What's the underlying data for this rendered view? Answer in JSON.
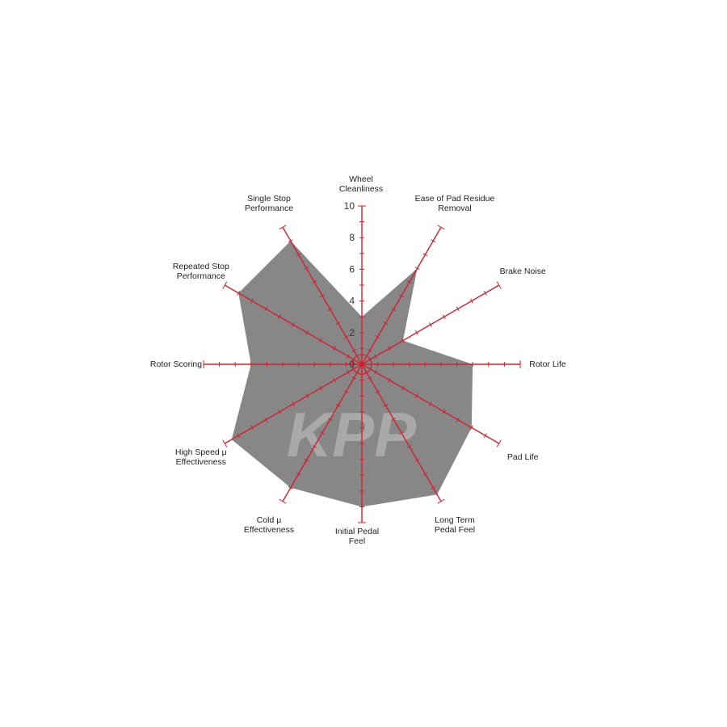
{
  "chart_data": {
    "type": "radar",
    "axes": [
      "Wheel\nCleanliness",
      "Ease of Pad Residue\nRemoval",
      "Brake Noise",
      "Rotor Life",
      "Pad Life",
      "Long Term\nPedal Feel",
      "Initial Pedal\nFeel",
      "Cold μ\nEffectiveness",
      "High Speed μ\nEffectiveness",
      "Rotor Scoring",
      "Repeated Stop\nPerformance",
      "Single Stop\nPerformance"
    ],
    "values": [
      3,
      7,
      3,
      7,
      8,
      9.5,
      9,
      9,
      9.5,
      7,
      9,
      9
    ],
    "range": [
      0,
      10
    ],
    "tick_labels": [
      "0",
      "2",
      "4",
      "6",
      "8",
      "10"
    ],
    "tick_step": 1,
    "watermark": "KPP",
    "colors": {
      "fill": "#878787",
      "axis": "#d0212e",
      "watermark": "#a9a9a9"
    }
  }
}
